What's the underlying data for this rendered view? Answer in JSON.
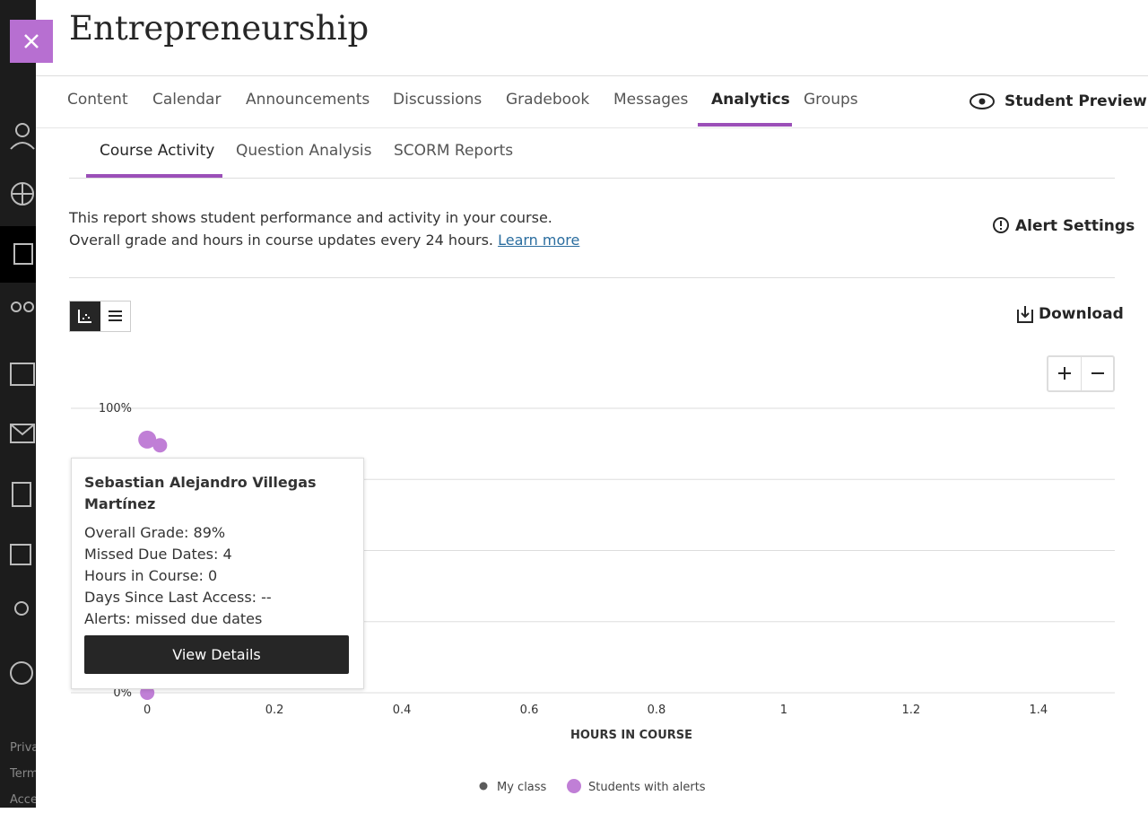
{
  "header": {
    "title": "Entrepreneurship",
    "preview": "Student Preview"
  },
  "nav": {
    "tabs": [
      "Content",
      "Calendar",
      "Announcements",
      "Discussions",
      "Gradebook",
      "Messages",
      "Analytics",
      "Groups"
    ],
    "active": 6
  },
  "subnav": {
    "tabs": [
      "Course Activity",
      "Question Analysis",
      "SCORM Reports"
    ],
    "active": 0
  },
  "report": {
    "lines": [
      "This report shows student performance and activity in your course.",
      "Overall grade and hours in course updates every 24 hours."
    ],
    "link": "Learn more",
    "alert_settings": "Alert Settings",
    "download": "Download"
  },
  "sidebar": {
    "footer": [
      "Priva",
      "Term",
      "Acce"
    ]
  },
  "tooltip": {
    "name": "Sebastian Alejandro Villegas Martínez",
    "lines": [
      "Overall Grade: 89%",
      "Missed Due Dates: 4",
      "Hours in Course: 0",
      "Days Since Last Access: --",
      "Alerts: missed due dates"
    ],
    "button": "View Details"
  },
  "chart_data": {
    "type": "scatter",
    "x_label": "HOURS IN COURSE",
    "xlim": [
      -0.12,
      1.52
    ],
    "xticks": [
      0,
      0.2,
      0.4,
      0.6,
      0.8,
      1,
      1.2,
      1.4
    ],
    "ylim": [
      0,
      100
    ],
    "yticks": [
      {
        "value": 0,
        "label": "0%"
      },
      {
        "value": 100,
        "label": "100%"
      }
    ],
    "ygrid": [
      0,
      25,
      50,
      75,
      100
    ],
    "series": [
      {
        "name": "My class",
        "color": "#5b5b5b",
        "x": [],
        "values": []
      },
      {
        "name": "Students with alerts",
        "color": "#c07fd6",
        "x": [
          0,
          0.02,
          0
        ],
        "values": [
          89,
          87,
          0
        ]
      }
    ]
  }
}
